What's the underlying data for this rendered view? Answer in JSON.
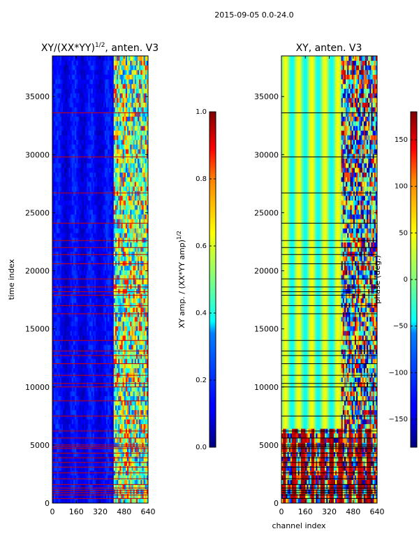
{
  "figure_title": "2015-09-05 0.0-24.0",
  "chart_data": [
    {
      "type": "heatmap",
      "title_main": "XY/(XX*YY)",
      "title_sup": "1/2",
      "title_tail": ", anten. V3",
      "xlabel": "",
      "ylabel": "time index",
      "xlim": [
        0,
        640
      ],
      "ylim": [
        0,
        38500
      ],
      "xticks": [
        0,
        160,
        320,
        480,
        640
      ],
      "yticks": [
        0,
        5000,
        10000,
        15000,
        20000,
        25000,
        30000,
        35000
      ],
      "colormap": "jet",
      "colorbar": {
        "label_main": "XY amp. / (XX*YY amp)",
        "label_sup": "1/2",
        "range": [
          0.0,
          1.0
        ],
        "ticks": [
          "0.0",
          "0.2",
          "0.4",
          "0.6",
          "0.8",
          "1.0"
        ],
        "tick_values": [
          0.0,
          0.2,
          0.4,
          0.6,
          0.8,
          1.0
        ]
      },
      "background_level": 0.1,
      "bright_region_x": [
        405,
        640
      ],
      "flag_line_color": "#cc0000",
      "flagged_rows": [
        400,
        700,
        900,
        1100,
        1300,
        1600,
        2100,
        2600,
        3100,
        3500,
        3900,
        4300,
        4700,
        4850,
        5000,
        5600,
        6200,
        7500,
        8800,
        10000,
        10300,
        11000,
        12000,
        12700,
        13100,
        14000,
        16300,
        17000,
        17900,
        18200,
        18600,
        19300,
        20600,
        21400,
        22000,
        22600,
        24100,
        26700,
        29800,
        33600
      ]
    },
    {
      "type": "heatmap",
      "title": "XY, anten. V3",
      "xlabel": "channel index",
      "ylabel": "",
      "xlim": [
        0,
        640
      ],
      "ylim": [
        0,
        38500
      ],
      "xticks": [
        0,
        160,
        320,
        480,
        640
      ],
      "yticks": [
        0,
        5000,
        10000,
        15000,
        20000,
        25000,
        30000,
        35000
      ],
      "colormap": "jet",
      "colorbar": {
        "label": "phase (deg.)",
        "range": [
          -180,
          180
        ],
        "ticks": [
          "−150",
          "−100",
          "−50",
          "0",
          "50",
          "100",
          "150"
        ],
        "tick_values": [
          -150,
          -100,
          -50,
          0,
          50,
          100,
          150
        ]
      },
      "background_level": 0.55,
      "noisy_region_x": [
        400,
        640
      ],
      "wrapped_region_y": [
        0,
        6100
      ],
      "flag_line_color": "#000000",
      "flagged_rows": [
        400,
        700,
        900,
        1100,
        1300,
        1600,
        2100,
        2600,
        3100,
        3500,
        3900,
        4300,
        4700,
        4850,
        5000,
        5600,
        6200,
        7500,
        8800,
        10000,
        10300,
        11000,
        12000,
        12700,
        13100,
        14000,
        16300,
        17000,
        17900,
        18200,
        18600,
        19300,
        20600,
        21400,
        22000,
        22600,
        24100,
        26700,
        29800,
        33600
      ]
    }
  ]
}
